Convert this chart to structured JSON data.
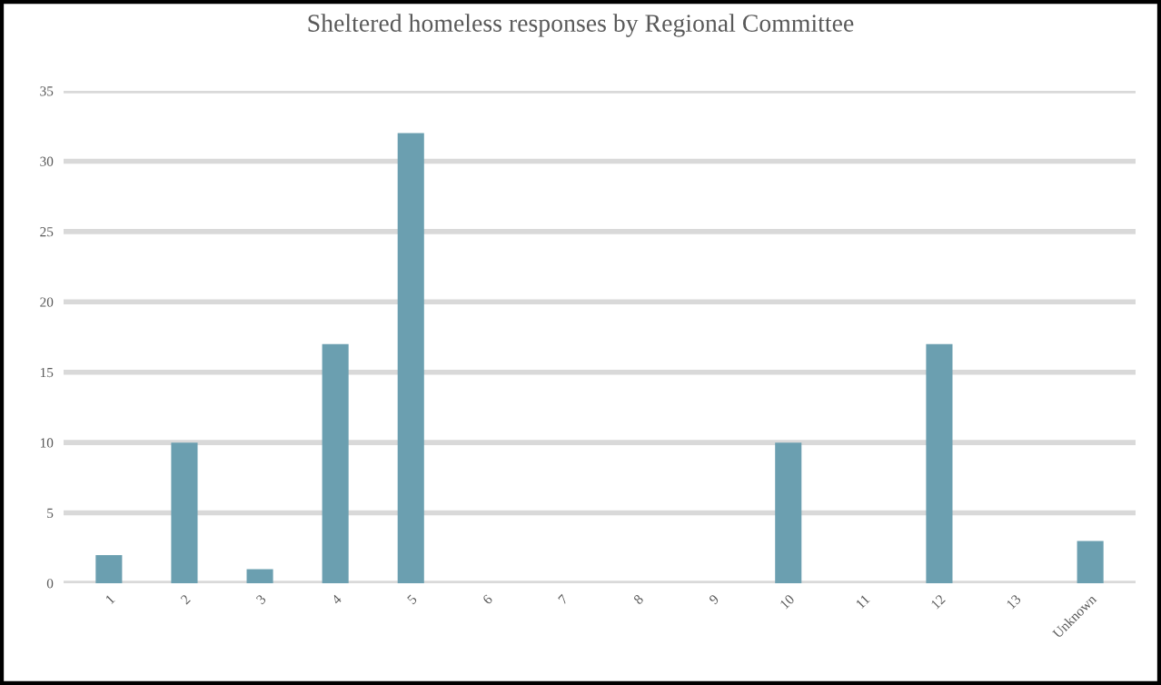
{
  "chart_data": {
    "type": "bar",
    "title": "Sheltered homeless responses by Regional Committee",
    "categories": [
      "1",
      "2",
      "3",
      "4",
      "5",
      "6",
      "7",
      "8",
      "9",
      "10",
      "11",
      "12",
      "13",
      "Unknown"
    ],
    "values": [
      2,
      10,
      1,
      17,
      32,
      0,
      0,
      0,
      0,
      10,
      0,
      17,
      0,
      3
    ],
    "color": "#6b9fb0",
    "ylim": [
      0,
      35
    ],
    "yticks": [
      0,
      5,
      10,
      15,
      20,
      25,
      30,
      35
    ],
    "grid": "y",
    "legend": false
  }
}
